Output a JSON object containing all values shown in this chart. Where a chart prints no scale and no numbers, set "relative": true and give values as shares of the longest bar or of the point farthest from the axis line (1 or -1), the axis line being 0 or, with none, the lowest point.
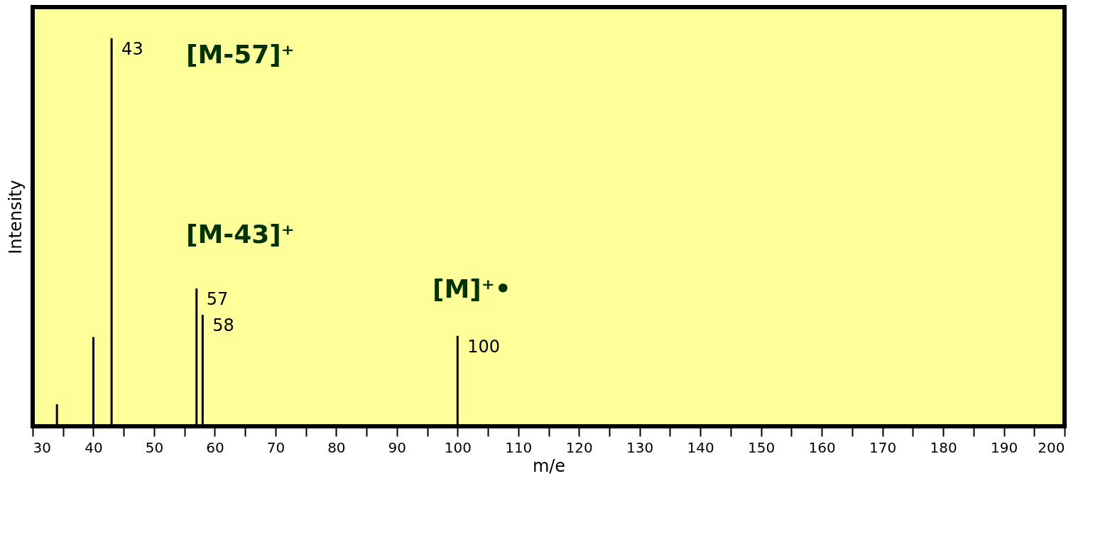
{
  "chart_data": {
    "type": "bar",
    "relative": true,
    "xlabel": "m/e",
    "ylabel": "Intensity",
    "tick_labels": "x",
    "color": "#000000",
    "x": [
      34,
      40,
      43,
      57,
      58,
      100
    ],
    "values": [
      0.057,
      0.23,
      1,
      0.355,
      0.287,
      0.233
    ],
    "xlim": [
      30,
      200
    ],
    "xticks": [
      30,
      {
        "value": 35,
        "label": null
      },
      40,
      {
        "value": 45,
        "label": null
      },
      50,
      {
        "value": 55,
        "label": null
      },
      60,
      {
        "value": 65,
        "label": null
      },
      70,
      {
        "value": 75,
        "label": null
      },
      80,
      {
        "value": 85,
        "label": null
      },
      90,
      {
        "value": 95,
        "label": null
      },
      100,
      {
        "value": 105,
        "label": null
      },
      110,
      {
        "value": 115,
        "label": null
      },
      120,
      {
        "value": 125,
        "label": null
      },
      130,
      {
        "value": 135,
        "label": null
      },
      140,
      {
        "value": 145,
        "label": null
      },
      150,
      {
        "value": 155,
        "label": null
      },
      160,
      {
        "value": 165,
        "label": null
      },
      170,
      {
        "value": 175,
        "label": null
      },
      180,
      {
        "value": 185,
        "label": null
      },
      190,
      {
        "value": 195,
        "label": null
      },
      200
    ],
    "annotations": [
      {
        "text": "43",
        "x": 43,
        "y": 1
      },
      {
        "text": "57",
        "x": 57,
        "y": 0.355
      },
      {
        "text": "58",
        "x": 58,
        "y": 0.287
      },
      {
        "text": "100",
        "x": 100,
        "y": 0.233
      },
      "[M-57]⁺",
      "[M-43]⁺",
      "[M]⁺•"
    ]
  }
}
